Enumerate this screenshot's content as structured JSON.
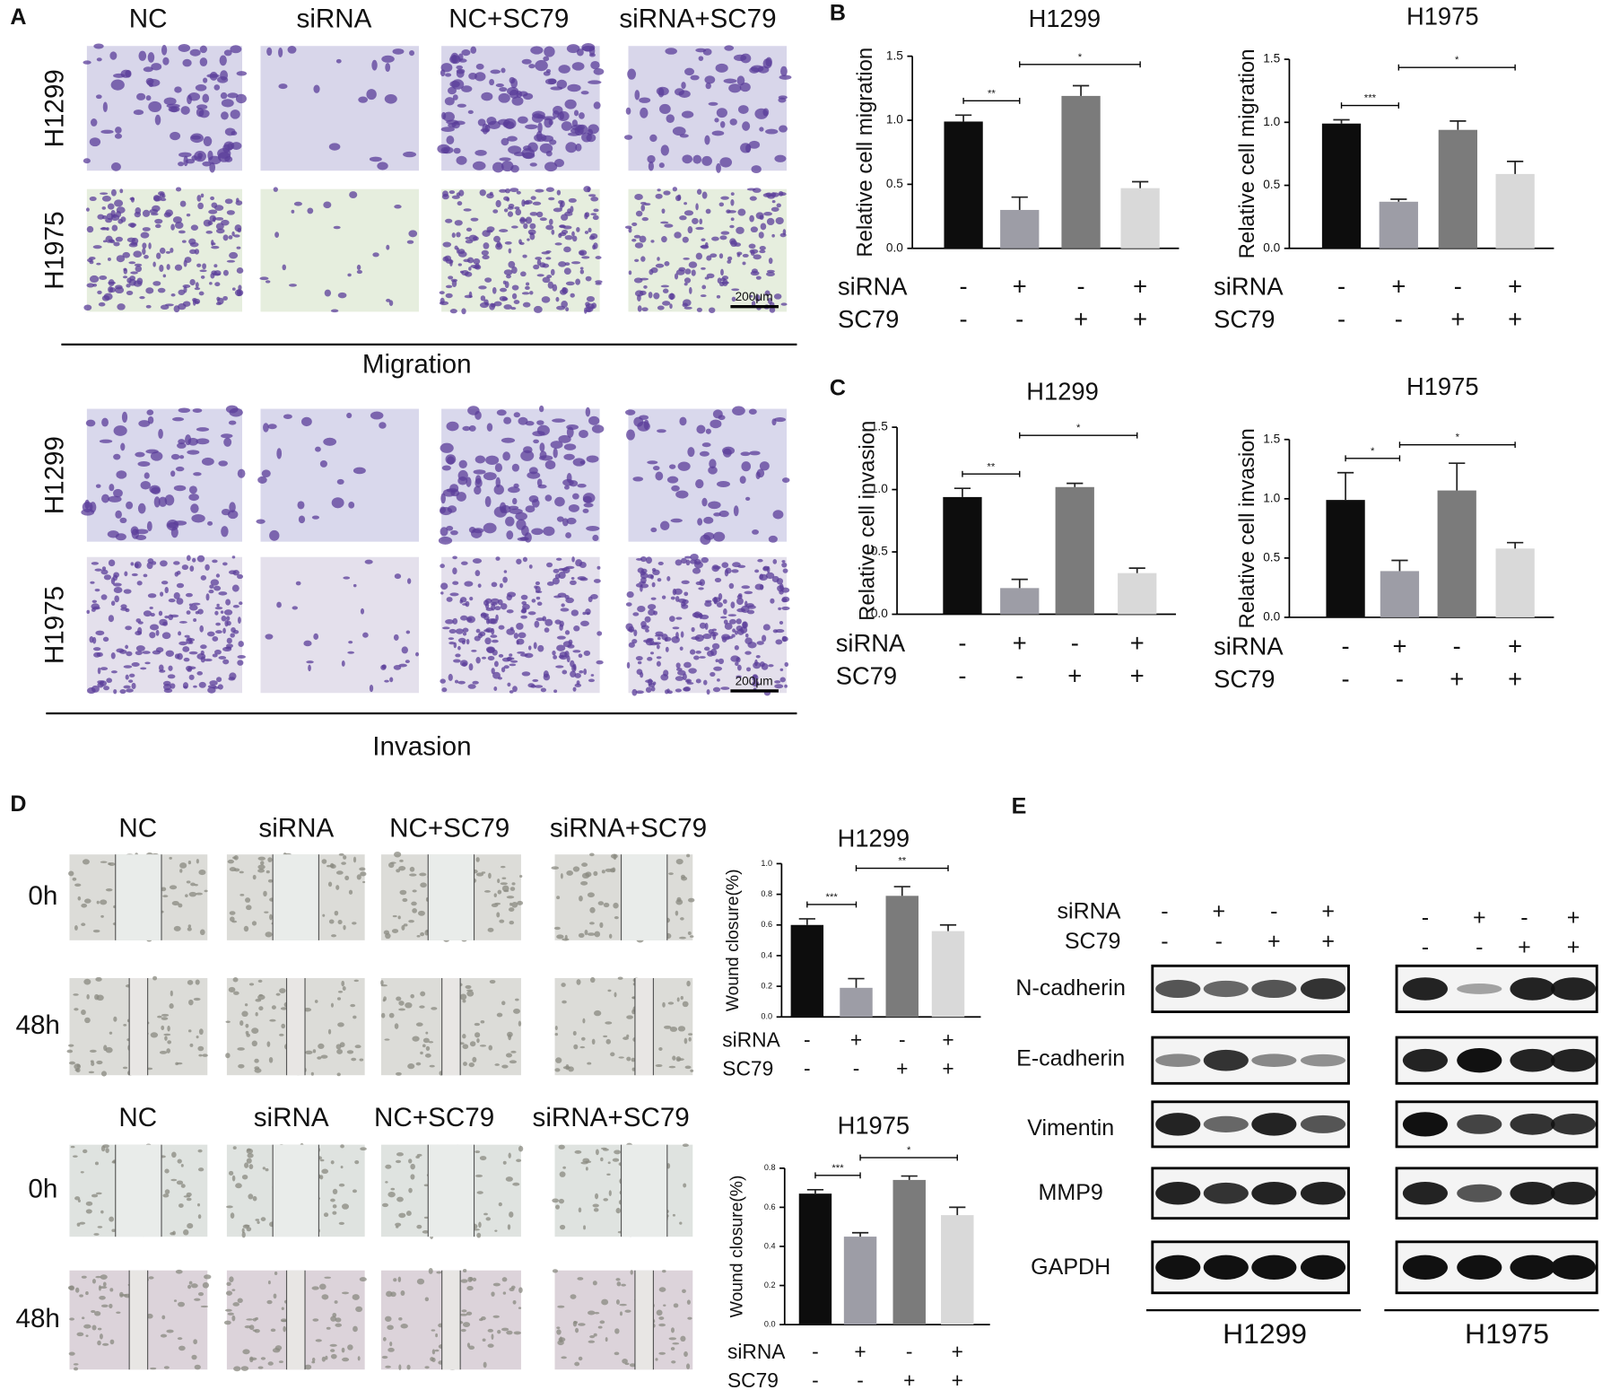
{
  "panel_labels": [
    "A",
    "B",
    "C",
    "D",
    "E"
  ],
  "panel_a": {
    "columns": [
      "NC",
      "siRNA",
      "NC+SC79",
      "siRNA+SC79"
    ],
    "rows": [
      "H1299",
      "H1975"
    ],
    "scale_bar": "200μm",
    "sections": [
      "Migration",
      "Invasion"
    ]
  },
  "panel_d": {
    "columns": [
      "NC",
      "siRNA",
      "NC+SC79",
      "siRNA+SC79"
    ],
    "times": [
      "0h",
      "48h"
    ]
  },
  "panel_e": {
    "conditions": [
      {
        "name": "siRNA",
        "values": [
          "-",
          "+",
          "-",
          "+"
        ]
      },
      {
        "name": "SC79",
        "values": [
          "-",
          "-",
          "+",
          "+"
        ]
      }
    ],
    "proteins": [
      "N-cadherin",
      "E-cadherin",
      "Vimentin",
      "MMP9",
      "GAPDH"
    ],
    "cell_lines": [
      "H1299",
      "H1975"
    ]
  },
  "chart_data": [
    {
      "type": "bar",
      "title": "H1299",
      "y_label": "Relative cell migration",
      "values": [
        0.99,
        0.3,
        1.19,
        0.47
      ],
      "errors": [
        0.05,
        0.1,
        0.08,
        0.05
      ],
      "colors": [
        "#0d0d0d",
        "#9d9da6",
        "#7b7b7b",
        "#d9d9d9"
      ],
      "ylim": [
        0,
        1.5
      ],
      "yticks": [
        {
          "value": 0,
          "label": "0.0"
        },
        0.5,
        {
          "value": 1,
          "label": "1.0"
        },
        1.5
      ],
      "significance": [
        "**",
        "*"
      ],
      "conditions": [
        {
          "name": "siRNA",
          "values": [
            "-",
            "+",
            "-",
            "+"
          ]
        },
        {
          "name": "SC79",
          "values": [
            "-",
            "-",
            "+",
            "+"
          ]
        }
      ]
    },
    {
      "type": "bar",
      "title": "H1975",
      "y_label": "Relative cell migration",
      "values": [
        0.99,
        0.37,
        0.94,
        0.59
      ],
      "errors": [
        0.03,
        0.02,
        0.07,
        0.1
      ],
      "colors": [
        "#0d0d0d",
        "#9d9da6",
        "#7b7b7b",
        "#d9d9d9"
      ],
      "ylim": [
        0,
        1.5
      ],
      "yticks": [
        {
          "value": 0,
          "label": "0.0"
        },
        0.5,
        {
          "value": 1,
          "label": "1.0"
        },
        1.5
      ],
      "significance": [
        "***",
        "*"
      ],
      "conditions": [
        {
          "name": "siRNA",
          "values": [
            "-",
            "+",
            "-",
            "+"
          ]
        },
        {
          "name": "SC79",
          "values": [
            "-",
            "-",
            "+",
            "+"
          ]
        }
      ]
    },
    {
      "type": "bar",
      "title": "H1299",
      "y_label": "Relative cell invasion",
      "values": [
        0.94,
        0.21,
        1.02,
        0.33
      ],
      "errors": [
        0.07,
        0.07,
        0.03,
        0.04
      ],
      "colors": [
        "#0d0d0d",
        "#9d9da6",
        "#7b7b7b",
        "#d9d9d9"
      ],
      "ylim": [
        0,
        1.5
      ],
      "yticks": [
        {
          "value": 0,
          "label": "0.0"
        },
        0.5,
        {
          "value": 1,
          "label": "1.0"
        },
        1.5
      ],
      "significance": [
        "**",
        "*"
      ],
      "conditions": [
        {
          "name": "siRNA",
          "values": [
            "-",
            "+",
            "-",
            "+"
          ]
        },
        {
          "name": "SC79",
          "values": [
            "-",
            "-",
            "+",
            "+"
          ]
        }
      ]
    },
    {
      "type": "bar",
      "title": "H1975",
      "y_label": "Relative cell invasion",
      "values": [
        0.99,
        0.39,
        1.07,
        0.58
      ],
      "errors": [
        0.23,
        0.09,
        0.23,
        0.05
      ],
      "colors": [
        "#0d0d0d",
        "#9d9da6",
        "#7b7b7b",
        "#d9d9d9"
      ],
      "ylim": [
        0,
        1.5
      ],
      "yticks": [
        {
          "value": 0,
          "label": "0.0"
        },
        0.5,
        {
          "value": 1,
          "label": "1.0"
        },
        1.5
      ],
      "significance": [
        "*",
        "*"
      ],
      "conditions": [
        {
          "name": "siRNA",
          "values": [
            "-",
            "+",
            "-",
            "+"
          ]
        },
        {
          "name": "SC79",
          "values": [
            "-",
            "-",
            "+",
            "+"
          ]
        }
      ]
    },
    {
      "type": "bar",
      "title": "H1299",
      "y_label": "Wound closure(%)",
      "values": [
        0.6,
        0.19,
        0.79,
        0.56
      ],
      "errors": [
        0.04,
        0.06,
        0.06,
        0.04
      ],
      "colors": [
        "#0d0d0d",
        "#9d9da6",
        "#7b7b7b",
        "#d9d9d9"
      ],
      "ylim": [
        0,
        1
      ],
      "yticks": [
        {
          "value": 0,
          "label": "0.0"
        },
        0.2,
        0.4,
        0.6,
        0.8,
        {
          "value": 1,
          "label": "1.0"
        }
      ],
      "significance": [
        "***",
        "**"
      ],
      "conditions": [
        {
          "name": "siRNA",
          "values": [
            "-",
            "+",
            "-",
            "+"
          ]
        },
        {
          "name": "SC79",
          "values": [
            "-",
            "-",
            "+",
            "+"
          ]
        }
      ]
    },
    {
      "type": "bar",
      "title": "H1975",
      "y_label": "Wound  closure(%)",
      "values": [
        0.67,
        0.45,
        0.74,
        0.56
      ],
      "errors": [
        0.02,
        0.02,
        0.02,
        0.04
      ],
      "colors": [
        "#0d0d0d",
        "#9d9da6",
        "#7b7b7b",
        "#d9d9d9"
      ],
      "ylim": [
        0,
        0.8
      ],
      "yticks": [
        {
          "value": 0,
          "label": "0.0"
        },
        0.2,
        0.4,
        0.6,
        0.8
      ],
      "significance": [
        "***",
        "*"
      ],
      "conditions": [
        {
          "name": "siRNA",
          "values": [
            "-",
            "+",
            "-",
            "+"
          ]
        },
        {
          "name": "SC79",
          "values": [
            "-",
            "-",
            "+",
            "+"
          ]
        }
      ]
    }
  ]
}
